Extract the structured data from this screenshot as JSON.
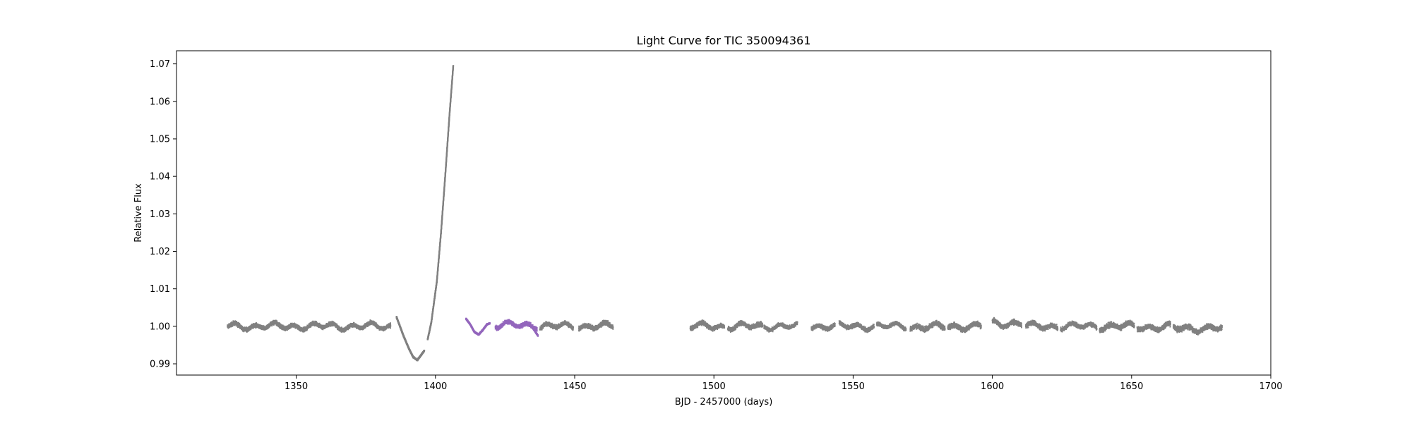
{
  "chart_data": {
    "type": "scatter",
    "title": "Light Curve for TIC 350094361",
    "xlabel": "BJD - 2457000 (days)",
    "ylabel": "Relative Flux",
    "xlim": [
      1307,
      1700
    ],
    "ylim": [
      0.987,
      1.0735
    ],
    "xticks": [
      1350,
      1400,
      1450,
      1500,
      1550,
      1600,
      1650,
      1700
    ],
    "yticks": [
      0.99,
      1.0,
      1.01,
      1.02,
      1.03,
      1.04,
      1.05,
      1.06,
      1.07
    ],
    "grid": false,
    "series": [
      {
        "color": "#808080",
        "segments": [
          {
            "kind": "flat",
            "x": [
              1325.3,
              1380.2
            ],
            "y": 1.0,
            "noise": 0.0008
          },
          {
            "kind": "flat",
            "x": [
              1380.4,
              1383.9
            ],
            "y": 1.0,
            "noise": 0.0008
          },
          {
            "kind": "curve",
            "points": [
              [
                1386.0,
                1.0025
              ],
              [
                1388.5,
                0.9975
              ],
              [
                1390.5,
                0.994
              ],
              [
                1392.0,
                0.9918
              ],
              [
                1393.5,
                0.991
              ],
              [
                1395.0,
                0.9925
              ],
              [
                1396.0,
                0.9935
              ]
            ]
          },
          {
            "kind": "curve",
            "points": [
              [
                1397.2,
                0.9965
              ],
              [
                1398.5,
                1.001
              ],
              [
                1400.5,
                1.012
              ],
              [
                1402.0,
                1.025
              ],
              [
                1403.5,
                1.04
              ],
              [
                1405.0,
                1.056
              ],
              [
                1406.4,
                1.0695
              ]
            ]
          },
          {
            "kind": "flat",
            "x": [
              1437.5,
              1449.5
            ],
            "y": 1.0,
            "noise": 0.0008
          },
          {
            "kind": "flat",
            "x": [
              1451.5,
              1463.8
            ],
            "y": 1.0,
            "noise": 0.0009
          },
          {
            "kind": "flat",
            "x": [
              1491.5,
              1503.8
            ],
            "y": 1.0,
            "noise": 0.0008
          },
          {
            "kind": "flat",
            "x": [
              1505.0,
              1517.5
            ],
            "y": 1.0,
            "noise": 0.0009
          },
          {
            "kind": "flat",
            "x": [
              1518.0,
              1530.0
            ],
            "y": 1.0,
            "noise": 0.0007
          },
          {
            "kind": "flat",
            "x": [
              1535.0,
              1543.5
            ],
            "y": 1.0,
            "noise": 0.0008
          },
          {
            "kind": "flat",
            "x": [
              1545.0,
              1557.5
            ],
            "y": 1.0,
            "noise": 0.0008
          },
          {
            "kind": "flat",
            "x": [
              1558.5,
              1569.0
            ],
            "y": 1.0,
            "noise": 0.0007
          },
          {
            "kind": "flat",
            "x": [
              1570.5,
              1583.0
            ],
            "y": 0.9998,
            "noise": 0.001
          },
          {
            "kind": "flat",
            "x": [
              1584.0,
              1596.0
            ],
            "y": 1.0,
            "noise": 0.001
          },
          {
            "kind": "flat",
            "x": [
              1600.0,
              1610.5
            ],
            "y": 1.0008,
            "noise": 0.0009
          },
          {
            "kind": "flat",
            "x": [
              1612.0,
              1623.5
            ],
            "y": 1.0,
            "noise": 0.0009
          },
          {
            "kind": "flat",
            "x": [
              1624.5,
              1637.5
            ],
            "y": 1.0,
            "noise": 0.0008
          },
          {
            "kind": "flat",
            "x": [
              1638.5,
              1651.0
            ],
            "y": 1.0,
            "noise": 0.001
          },
          {
            "kind": "flat",
            "x": [
              1652.0,
              1664.0
            ],
            "y": 0.9998,
            "noise": 0.0009
          },
          {
            "kind": "flat",
            "x": [
              1665.0,
              1682.5
            ],
            "y": 0.9995,
            "noise": 0.001
          }
        ]
      },
      {
        "color": "#9467bd",
        "segments": [
          {
            "kind": "curve",
            "points": [
              [
                1411.0,
                1.002
              ],
              [
                1412.5,
                1.0005
              ],
              [
                1414.0,
                0.9985
              ],
              [
                1415.5,
                0.9978
              ],
              [
                1417.0,
                0.999
              ],
              [
                1418.5,
                1.0005
              ],
              [
                1419.5,
                1.0008
              ]
            ]
          },
          {
            "kind": "flat",
            "x": [
              1421.5,
              1436.5
            ],
            "y": 1.0003,
            "noise": 0.0008
          },
          {
            "kind": "curve",
            "points": [
              [
                1434.0,
                1.0005
              ],
              [
                1435.5,
                0.999
              ],
              [
                1436.8,
                0.9975
              ]
            ]
          }
        ]
      }
    ]
  }
}
